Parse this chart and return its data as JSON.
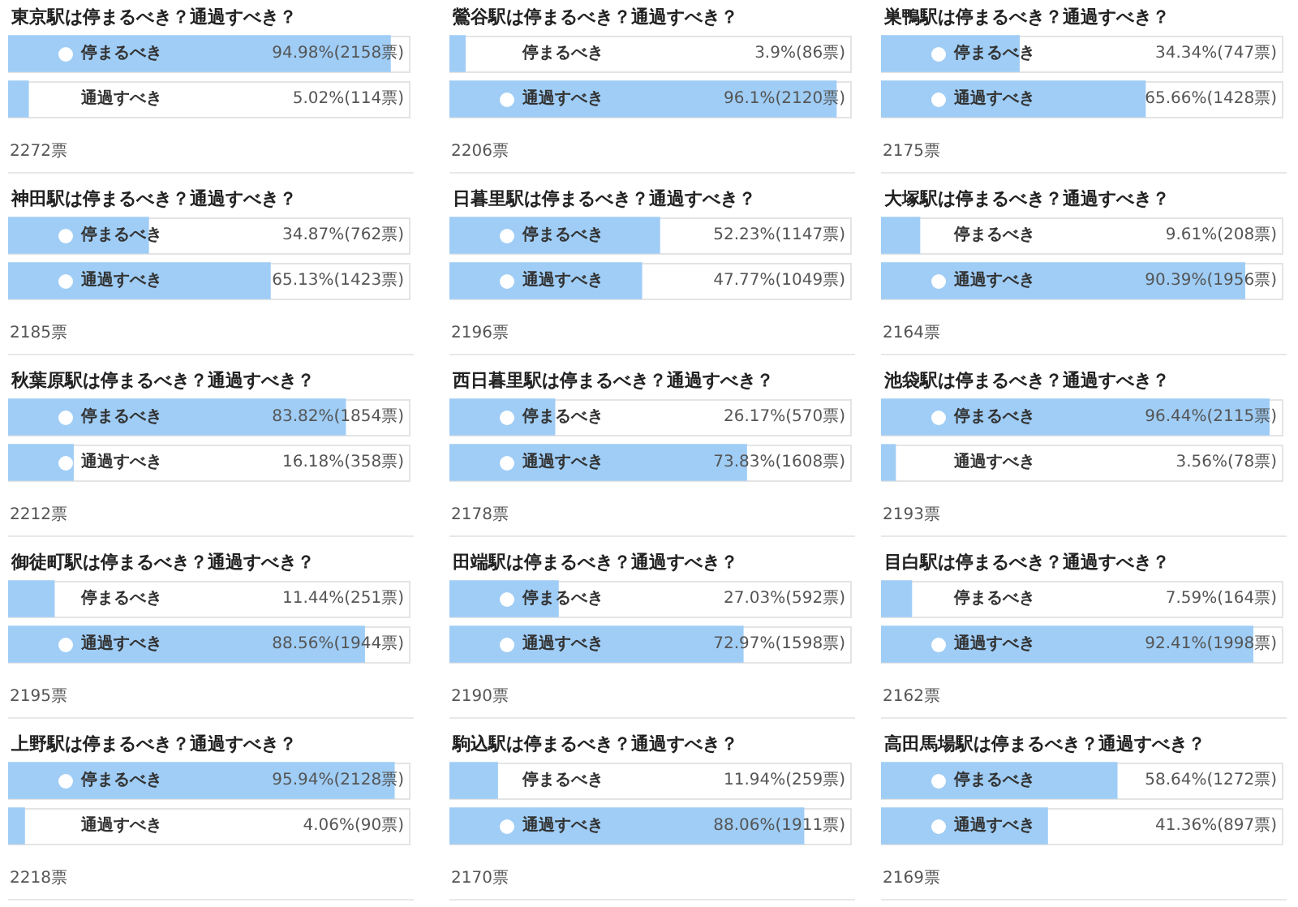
{
  "chart_data": [
    {
      "type": "bar",
      "orientation": "horizontal",
      "title": "東京駅は停まるべき？通過すべき？",
      "categories": [
        "停まるべき",
        "通過すべき"
      ],
      "values": [
        94.98,
        5.02
      ],
      "value_labels": [
        "94.98%(2158票)",
        "5.02%(114票)"
      ],
      "color": "#9fcdf6",
      "xlim": [
        0,
        100
      ],
      "tick_labels": false,
      "annotations": [
        "2272票"
      ]
    },
    {
      "type": "bar",
      "orientation": "horizontal",
      "title": "鶯谷駅は停まるべき？通過すべき？",
      "categories": [
        "停まるべき",
        "通過すべき"
      ],
      "values": [
        3.9,
        96.1
      ],
      "value_labels": [
        "3.9%(86票)",
        "96.1%(2120票)"
      ],
      "color": "#9fcdf6",
      "xlim": [
        0,
        100
      ],
      "tick_labels": false,
      "annotations": [
        "2206票"
      ]
    },
    {
      "type": "bar",
      "orientation": "horizontal",
      "title": "巣鴨駅は停まるべき？通過すべき？",
      "categories": [
        "停まるべき",
        "通過すべき"
      ],
      "values": [
        34.34,
        65.66
      ],
      "value_labels": [
        "34.34%(747票)",
        "65.66%(1428票)"
      ],
      "color": "#9fcdf6",
      "xlim": [
        0,
        100
      ],
      "tick_labels": false,
      "annotations": [
        "2175票"
      ]
    },
    {
      "type": "bar",
      "orientation": "horizontal",
      "title": "神田駅は停まるべき？通過すべき？",
      "categories": [
        "停まるべき",
        "通過すべき"
      ],
      "values": [
        34.87,
        65.13
      ],
      "value_labels": [
        "34.87%(762票)",
        "65.13%(1423票)"
      ],
      "color": "#9fcdf6",
      "xlim": [
        0,
        100
      ],
      "tick_labels": false,
      "annotations": [
        "2185票"
      ]
    },
    {
      "type": "bar",
      "orientation": "horizontal",
      "title": "日暮里駅は停まるべき？通過すべき？",
      "categories": [
        "停まるべき",
        "通過すべき"
      ],
      "values": [
        52.23,
        47.77
      ],
      "value_labels": [
        "52.23%(1147票)",
        "47.77%(1049票)"
      ],
      "color": "#9fcdf6",
      "xlim": [
        0,
        100
      ],
      "tick_labels": false,
      "annotations": [
        "2196票"
      ]
    },
    {
      "type": "bar",
      "orientation": "horizontal",
      "title": "大塚駅は停まるべき？通過すべき？",
      "categories": [
        "停まるべき",
        "通過すべき"
      ],
      "values": [
        9.61,
        90.39
      ],
      "value_labels": [
        "9.61%(208票)",
        "90.39%(1956票)"
      ],
      "color": "#9fcdf6",
      "xlim": [
        0,
        100
      ],
      "tick_labels": false,
      "annotations": [
        "2164票"
      ]
    },
    {
      "type": "bar",
      "orientation": "horizontal",
      "title": "秋葉原駅は停まるべき？通過すべき？",
      "categories": [
        "停まるべき",
        "通過すべき"
      ],
      "values": [
        83.82,
        16.18
      ],
      "value_labels": [
        "83.82%(1854票)",
        "16.18%(358票)"
      ],
      "color": "#9fcdf6",
      "xlim": [
        0,
        100
      ],
      "tick_labels": false,
      "annotations": [
        "2212票"
      ]
    },
    {
      "type": "bar",
      "orientation": "horizontal",
      "title": "西日暮里駅は停まるべき？通過すべき？",
      "categories": [
        "停まるべき",
        "通過すべき"
      ],
      "values": [
        26.17,
        73.83
      ],
      "value_labels": [
        "26.17%(570票)",
        "73.83%(1608票)"
      ],
      "color": "#9fcdf6",
      "xlim": [
        0,
        100
      ],
      "tick_labels": false,
      "annotations": [
        "2178票"
      ]
    },
    {
      "type": "bar",
      "orientation": "horizontal",
      "title": "池袋駅は停まるべき？通過すべき？",
      "categories": [
        "停まるべき",
        "通過すべき"
      ],
      "values": [
        96.44,
        3.56
      ],
      "value_labels": [
        "96.44%(2115票)",
        "3.56%(78票)"
      ],
      "color": "#9fcdf6",
      "xlim": [
        0,
        100
      ],
      "tick_labels": false,
      "annotations": [
        "2193票"
      ]
    },
    {
      "type": "bar",
      "orientation": "horizontal",
      "title": "御徒町駅は停まるべき？通過すべき？",
      "categories": [
        "停まるべき",
        "通過すべき"
      ],
      "values": [
        11.44,
        88.56
      ],
      "value_labels": [
        "11.44%(251票)",
        "88.56%(1944票)"
      ],
      "color": "#9fcdf6",
      "xlim": [
        0,
        100
      ],
      "tick_labels": false,
      "annotations": [
        "2195票"
      ]
    },
    {
      "type": "bar",
      "orientation": "horizontal",
      "title": "田端駅は停まるべき？通過すべき？",
      "categories": [
        "停まるべき",
        "通過すべき"
      ],
      "values": [
        27.03,
        72.97
      ],
      "value_labels": [
        "27.03%(592票)",
        "72.97%(1598票)"
      ],
      "color": "#9fcdf6",
      "xlim": [
        0,
        100
      ],
      "tick_labels": false,
      "annotations": [
        "2190票"
      ]
    },
    {
      "type": "bar",
      "orientation": "horizontal",
      "title": "目白駅は停まるべき？通過すべき？",
      "categories": [
        "停まるべき",
        "通過すべき"
      ],
      "values": [
        7.59,
        92.41
      ],
      "value_labels": [
        "7.59%(164票)",
        "92.41%(1998票)"
      ],
      "color": "#9fcdf6",
      "xlim": [
        0,
        100
      ],
      "tick_labels": false,
      "annotations": [
        "2162票"
      ]
    },
    {
      "type": "bar",
      "orientation": "horizontal",
      "title": "上野駅は停まるべき？通過すべき？",
      "categories": [
        "停まるべき",
        "通過すべき"
      ],
      "values": [
        95.94,
        4.06
      ],
      "value_labels": [
        "95.94%(2128票)",
        "4.06%(90票)"
      ],
      "color": "#9fcdf6",
      "xlim": [
        0,
        100
      ],
      "tick_labels": false,
      "annotations": [
        "2218票"
      ]
    },
    {
      "type": "bar",
      "orientation": "horizontal",
      "title": "駒込駅は停まるべき？通過すべき？",
      "categories": [
        "停まるべき",
        "通過すべき"
      ],
      "values": [
        11.94,
        88.06
      ],
      "value_labels": [
        "11.94%(259票)",
        "88.06%(1911票)"
      ],
      "color": "#9fcdf6",
      "xlim": [
        0,
        100
      ],
      "tick_labels": false,
      "annotations": [
        "2170票"
      ]
    },
    {
      "type": "bar",
      "orientation": "horizontal",
      "title": "高田馬場駅は停まるべき？通過すべき？",
      "categories": [
        "停まるべき",
        "通過すべき"
      ],
      "values": [
        58.64,
        41.36
      ],
      "value_labels": [
        "58.64%(1272票)",
        "41.36%(897票)"
      ],
      "color": "#9fcdf6",
      "xlim": [
        0,
        100
      ],
      "tick_labels": false,
      "annotations": [
        "2169票"
      ]
    }
  ]
}
